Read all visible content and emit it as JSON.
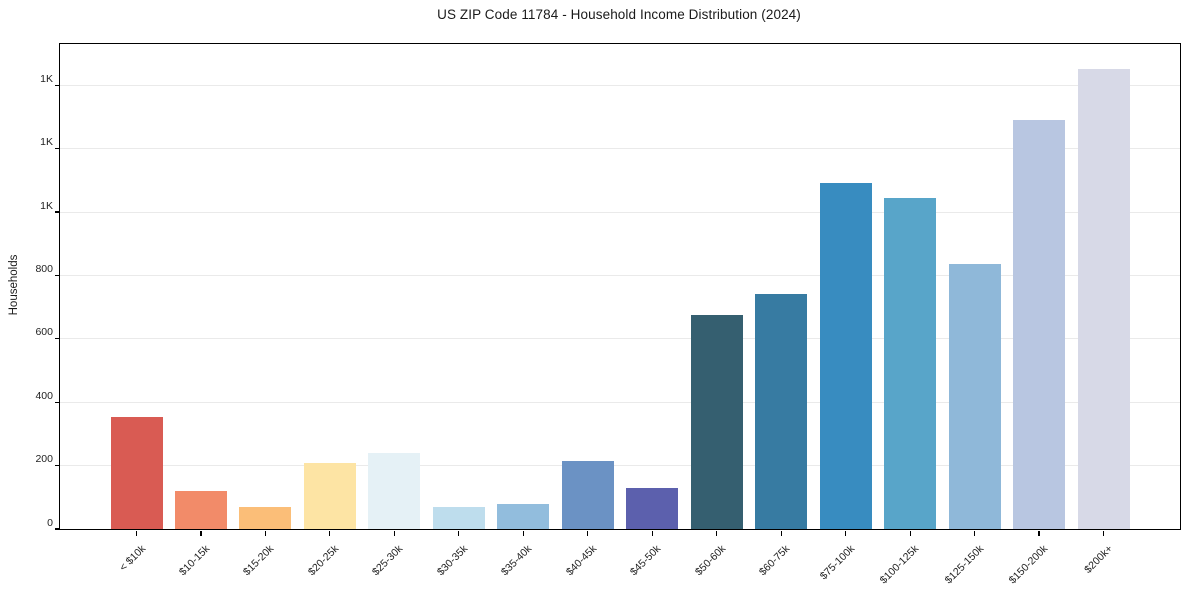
{
  "chart_data": {
    "type": "bar",
    "title": "US ZIP Code 11784 - Household Income Distribution (2024)",
    "xlabel": "",
    "ylabel": "Households",
    "categories": [
      "< $10k",
      "$10-15k",
      "$15-20k",
      "$20-25k",
      "$25-30k",
      "$30-35k",
      "$35-40k",
      "$40-45k",
      "$45-50k",
      "$50-60k",
      "$60-75k",
      "$75-100k",
      "$100-125k",
      "$125-150k",
      "$150-200k",
      "$200k+"
    ],
    "values": [
      352,
      119,
      68,
      208,
      240,
      68,
      78,
      216,
      128,
      674,
      741,
      1092,
      1044,
      836,
      1290,
      1450
    ],
    "bar_colors": [
      "#d95b53",
      "#f28b69",
      "#fbbe78",
      "#fde4a4",
      "#e5f1f6",
      "#bedded",
      "#92bddd",
      "#6b92c4",
      "#5c60ad",
      "#355f70",
      "#377ba2",
      "#388cc0",
      "#58a5c9",
      "#8fb8d9",
      "#b8c6e1",
      "#d7d9e7"
    ],
    "ylim": [
      0,
      1530
    ],
    "yticks": {
      "values": [
        0,
        200,
        400,
        600,
        800,
        1000,
        1200,
        1400
      ],
      "labels": [
        "0",
        "200",
        "400",
        "600",
        "800",
        "1K",
        "1K",
        "1K"
      ]
    },
    "grid": true,
    "legend": "none",
    "colors": {
      "background": "#ffffff",
      "grid": "#eaeaea",
      "axis": "#000000",
      "text": "#1f1f1f"
    }
  }
}
